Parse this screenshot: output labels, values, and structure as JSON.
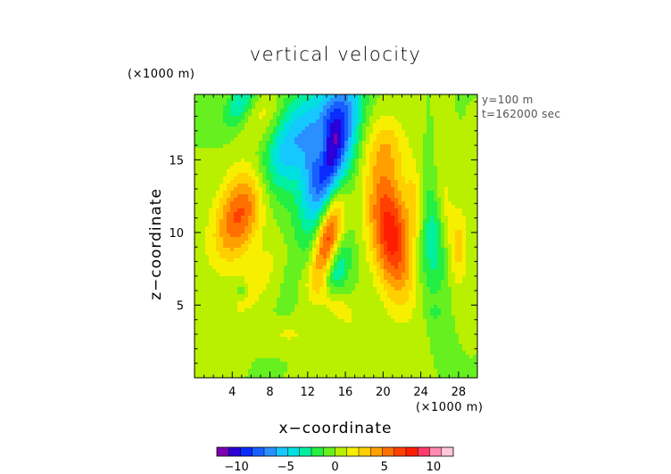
{
  "chart_data": {
    "type": "heatmap",
    "title": "vertical velocity",
    "xlabel": "x−coordinate",
    "ylabel": "z−coordinate",
    "x_unit": "(×1000 m)",
    "y_unit": "(×1000 m)",
    "annotations": [
      "y=100 m",
      "t=162000 sec"
    ],
    "xlim": [
      0,
      30
    ],
    "ylim": [
      0,
      19.5
    ],
    "x_ticks": [
      4,
      8,
      12,
      16,
      20,
      24,
      28
    ],
    "x_tick_labels": [
      "4",
      "8",
      "12",
      "16",
      "20",
      "24",
      "28"
    ],
    "y_ticks": [
      5,
      10,
      15
    ],
    "y_tick_labels": [
      "5",
      "10",
      "15"
    ],
    "colorbar": {
      "range": [
        -12,
        12
      ],
      "ticks": [
        -10,
        -5,
        0,
        5,
        10
      ],
      "tick_labels": [
        "−10",
        "−5",
        "0",
        "5",
        "10"
      ],
      "colors": [
        "#7a00b0",
        "#2a00d8",
        "#0a2cff",
        "#1760ff",
        "#2a90ff",
        "#15c8ff",
        "#00e0e0",
        "#00f0a0",
        "#22ee44",
        "#66f020",
        "#b8f000",
        "#f6f000",
        "#ffd000",
        "#ffa000",
        "#ff7000",
        "#ff4000",
        "#ff1d00",
        "#ff3b6a",
        "#ff8cb0",
        "#ffc8d8"
      ]
    },
    "features": [
      {
        "type": "blob",
        "x": 14.5,
        "z": 15.5,
        "sx": 1.5,
        "sz": 3.7,
        "angle": 22,
        "value": -11
      },
      {
        "type": "blob",
        "x": 10.0,
        "z": 16.0,
        "sx": 1.7,
        "sz": 3.5,
        "angle": 45,
        "value": -6
      },
      {
        "type": "blob",
        "x": 5.0,
        "z": 19.0,
        "sx": 0.8,
        "sz": 1.5,
        "angle": 50,
        "value": -4
      },
      {
        "type": "blob",
        "x": 14.2,
        "z": 9.8,
        "sx": 0.9,
        "sz": 2.6,
        "angle": 18,
        "value": 8
      },
      {
        "type": "blob",
        "x": 5.0,
        "z": 11.5,
        "sx": 1.6,
        "sz": 2.7,
        "angle": 35,
        "value": 7
      },
      {
        "type": "blob",
        "x": 20.8,
        "z": 10.0,
        "sx": 1.5,
        "sz": 3.3,
        "angle": -15,
        "value": 8
      },
      {
        "type": "blob",
        "x": 13.5,
        "z": 15.8,
        "sx": 0.6,
        "sz": 1.2,
        "angle": 0,
        "value": 3
      },
      {
        "type": "blob",
        "x": 15.0,
        "z": 7.5,
        "sx": 0.9,
        "sz": 1.5,
        "angle": 30,
        "value": -4
      },
      {
        "type": "blob",
        "x": 25.0,
        "z": 9.5,
        "sx": 1.2,
        "sz": 2.8,
        "angle": -5,
        "value": -3.5
      },
      {
        "type": "blob",
        "x": 28.0,
        "z": 9.0,
        "sx": 0.7,
        "sz": 2.0,
        "angle": 0,
        "value": 3
      },
      {
        "type": "blob",
        "x": 20.5,
        "z": 16.0,
        "sx": 1.5,
        "sz": 1.6,
        "angle": 0,
        "value": 2.5
      },
      {
        "type": "blob",
        "x": 6.5,
        "z": 6.5,
        "sx": 0.9,
        "sz": 2.5,
        "angle": 45,
        "value": 2
      },
      {
        "type": "blob",
        "x": 7.5,
        "z": 18.0,
        "sx": 1.5,
        "sz": 1.5,
        "angle": 45,
        "value": 2
      },
      {
        "type": "blob",
        "x": 15.0,
        "z": 5.0,
        "sx": 2.0,
        "sz": 0.7,
        "angle": 30,
        "value": 2
      },
      {
        "type": "blob",
        "x": 23.5,
        "z": 12.0,
        "sx": 0.7,
        "sz": 2.0,
        "angle": -5,
        "value": 3
      },
      {
        "type": "blob",
        "x": 26.5,
        "z": 12.0,
        "sx": 0.6,
        "sz": 2.2,
        "angle": -5,
        "value": 2
      },
      {
        "type": "blob",
        "x": 10.0,
        "z": 3.0,
        "sx": 1.2,
        "sz": 0.5,
        "angle": 0,
        "value": 1.5
      },
      {
        "type": "blob",
        "x": 5.0,
        "z": 6.0,
        "sx": 0.4,
        "sz": 0.4,
        "angle": 0,
        "value": -2
      },
      {
        "type": "blob",
        "x": 25.5,
        "z": 4.5,
        "sx": 0.6,
        "sz": 0.3,
        "angle": 0,
        "value": -1.5
      }
    ]
  }
}
